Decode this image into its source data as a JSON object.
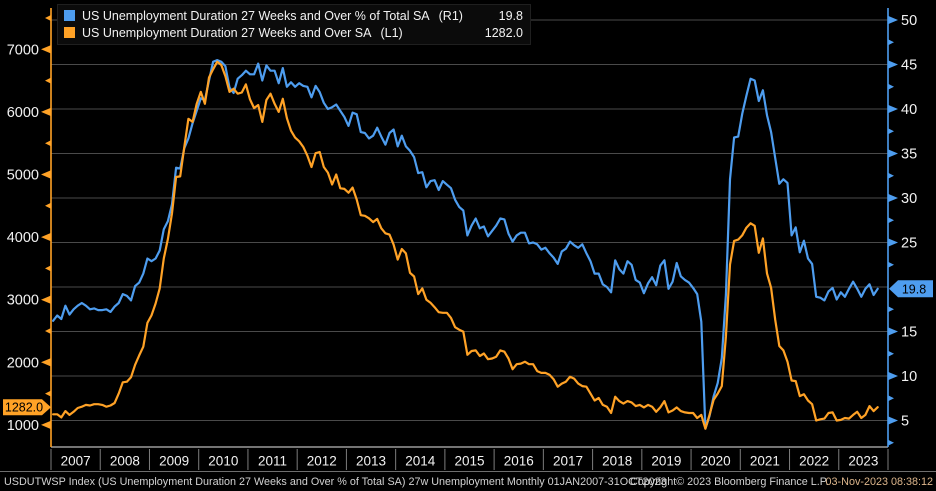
{
  "legend": {
    "series": [
      {
        "name": "US Unemployment Duration 27 Weeks and Over % of Total SA",
        "axis_tag": "(R1)",
        "value": "19.8",
        "color": "#4E9DEF"
      },
      {
        "name": "US Unemployment Duration 27 Weeks and Over SA",
        "axis_tag": "(L1)",
        "value": "1282.0",
        "color": "#FFA226"
      }
    ]
  },
  "footer": {
    "left": "USDUTWSP Index (US Unemployment Duration 27 Weeks and Over % of Total SA) 27w Unemployment  Monthly 01JAN2007-31OCT2023",
    "copyright": "Copyright© 2023 Bloomberg Finance L.P.",
    "timestamp": "03-Nov-2023 08:38:12"
  },
  "chart_data": {
    "type": "line",
    "frequency": "monthly",
    "start": "2007-01",
    "end": "2023-10",
    "x_tick_labels": [
      "2007",
      "2008",
      "2009",
      "2010",
      "2011",
      "2012",
      "2013",
      "2014",
      "2015",
      "2016",
      "2017",
      "2018",
      "2019",
      "2020",
      "2021",
      "2022",
      "2023"
    ],
    "colors": {
      "blue": "#4E9DEF",
      "orange": "#FFA226",
      "grid": "#4a4a4a",
      "axis_text": "#f2f2f2",
      "frame": "#b9b9b9",
      "band": "#7d7d7d",
      "badge_text": "#000000"
    },
    "left_axis": {
      "unit": "thousands of persons",
      "major_ticks": [
        7000,
        6000,
        5000,
        4000,
        3000,
        2000,
        1000
      ],
      "minor_ticks": [
        7500,
        6500,
        5500,
        4500,
        3500,
        2500,
        1500
      ],
      "current_value": 1282.0,
      "color": "#FFA226"
    },
    "right_axis": {
      "unit": "% of total unemployed",
      "major_ticks": [
        50,
        45,
        40,
        35,
        30,
        25,
        15,
        10,
        5
      ],
      "minor_ticks": [
        47.5,
        42.5,
        37.5,
        32.5,
        27.5,
        22.5,
        17.5,
        12.5,
        7.5,
        2.5
      ],
      "gridline_values": [
        50,
        45,
        40,
        35,
        30,
        25,
        20,
        15,
        10,
        5
      ],
      "current_value": 19.8,
      "color": "#4E9DEF"
    },
    "series": [
      {
        "name": "US Unemployment Duration 27 Weeks and Over % of Total SA",
        "axis": "right",
        "color": "#4E9DEF",
        "values": [
          16.2,
          16.8,
          16.4,
          17.9,
          16.9,
          17.5,
          17.9,
          18.2,
          17.9,
          17.5,
          17.6,
          17.4,
          17.4,
          17.5,
          17.2,
          17.8,
          18.2,
          19.2,
          19.0,
          18.5,
          20.1,
          20.5,
          21.5,
          23.2,
          22.9,
          23.2,
          24.1,
          26.5,
          27.4,
          29.3,
          33.4,
          33.3,
          35.6,
          36.7,
          38.4,
          39.8,
          41.2,
          41.0,
          43.2,
          45.3,
          45.5,
          45.3,
          44.8,
          42.4,
          41.8,
          43.4,
          43.8,
          44.3,
          43.9,
          43.9,
          45.1,
          43.2,
          44.9,
          44.3,
          44.3,
          42.9,
          44.6,
          42.5,
          43.0,
          42.5,
          42.9,
          42.6,
          42.5,
          41.3,
          42.6,
          41.9,
          40.7,
          40.0,
          40.2,
          40.5,
          39.8,
          39.1,
          38.1,
          39.6,
          39.4,
          37.4,
          37.3,
          36.7,
          37.0,
          37.9,
          36.9,
          36.0,
          37.3,
          37.7,
          35.8,
          37.0,
          35.8,
          35.3,
          34.6,
          32.8,
          32.9,
          31.2,
          31.9,
          32.0,
          30.9,
          31.9,
          31.5,
          31.1,
          29.8,
          29.0,
          28.6,
          25.8,
          26.9,
          27.7,
          26.6,
          26.8,
          25.7,
          26.3,
          26.9,
          27.7,
          27.6,
          26.0,
          25.1,
          25.8,
          26.1,
          26.1,
          24.9,
          25.0,
          24.8,
          24.2,
          24.4,
          23.8,
          23.3,
          22.6,
          24.0,
          24.3,
          25.1,
          24.7,
          24.4,
          24.8,
          23.8,
          22.9,
          21.5,
          21.5,
          20.3,
          20.0,
          19.4,
          23.0,
          22.0,
          21.5,
          22.9,
          22.5,
          20.8,
          20.5,
          19.3,
          20.4,
          21.1,
          20.2,
          22.4,
          23.0,
          19.8,
          20.6,
          22.7,
          21.2,
          20.8,
          20.5,
          19.9,
          19.2,
          16.1,
          4.1,
          5.5,
          7.7,
          9.2,
          12.0,
          19.1,
          32.1,
          36.8,
          36.9,
          39.5,
          41.5,
          43.4,
          43.2,
          40.9,
          42.1,
          39.3,
          37.4,
          34.5,
          31.6,
          32.1,
          31.7,
          25.8,
          26.7,
          23.9,
          25.2,
          23.2,
          22.6,
          18.9,
          18.8,
          18.5,
          19.5,
          19.9,
          18.6,
          19.4,
          18.9,
          19.8,
          20.6,
          19.8,
          18.9,
          19.8,
          20.3,
          19.1,
          19.8
        ]
      },
      {
        "name": "US Unemployment Duration 27 Weeks and Over SA",
        "axis": "left",
        "color": "#FFA226",
        "values": [
          1170,
          1170,
          1120,
          1220,
          1160,
          1210,
          1270,
          1290,
          1320,
          1310,
          1330,
          1330,
          1320,
          1290,
          1310,
          1350,
          1500,
          1680,
          1690,
          1760,
          1960,
          2110,
          2250,
          2630,
          2750,
          2940,
          3180,
          3660,
          3970,
          4380,
          4960,
          4970,
          5440,
          5890,
          5840,
          6130,
          6320,
          6130,
          6550,
          6680,
          6800,
          6750,
          6570,
          6320,
          6370,
          6290,
          6310,
          6440,
          6200,
          6060,
          6110,
          5840,
          6190,
          6290,
          6130,
          6000,
          6210,
          5900,
          5700,
          5590,
          5530,
          5440,
          5300,
          5120,
          5340,
          5360,
          5120,
          5030,
          4840,
          5000,
          4780,
          4770,
          4710,
          4790,
          4600,
          4350,
          4340,
          4300,
          4240,
          4290,
          4140,
          4060,
          4040,
          3880,
          3640,
          3810,
          3740,
          3430,
          3370,
          3090,
          3180,
          3000,
          2950,
          2880,
          2800,
          2790,
          2790,
          2710,
          2560,
          2520,
          2490,
          2120,
          2180,
          2190,
          2100,
          2140,
          2050,
          2060,
          2090,
          2190,
          2170,
          2060,
          1890,
          1970,
          1980,
          2010,
          1970,
          1970,
          1860,
          1830,
          1830,
          1800,
          1730,
          1610,
          1660,
          1690,
          1770,
          1740,
          1660,
          1620,
          1610,
          1500,
          1390,
          1430,
          1320,
          1290,
          1190,
          1450,
          1380,
          1340,
          1380,
          1360,
          1300,
          1320,
          1280,
          1320,
          1290,
          1210,
          1280,
          1380,
          1200,
          1230,
          1280,
          1220,
          1200,
          1190,
          1190,
          1110,
          1160,
          940,
          1160,
          1400,
          1500,
          1620,
          2410,
          3560,
          3940,
          3960,
          4030,
          4150,
          4220,
          4180,
          3750,
          3980,
          3420,
          3190,
          2680,
          2260,
          2190,
          2010,
          1710,
          1700,
          1460,
          1490,
          1390,
          1330,
          1070,
          1090,
          1100,
          1190,
          1200,
          1070,
          1080,
          1110,
          1100,
          1160,
          1210,
          1110,
          1160,
          1300,
          1220,
          1282
        ]
      }
    ],
    "grid": "horizontal only, aligned to right-axis ticks",
    "legend_position": "top-left"
  }
}
